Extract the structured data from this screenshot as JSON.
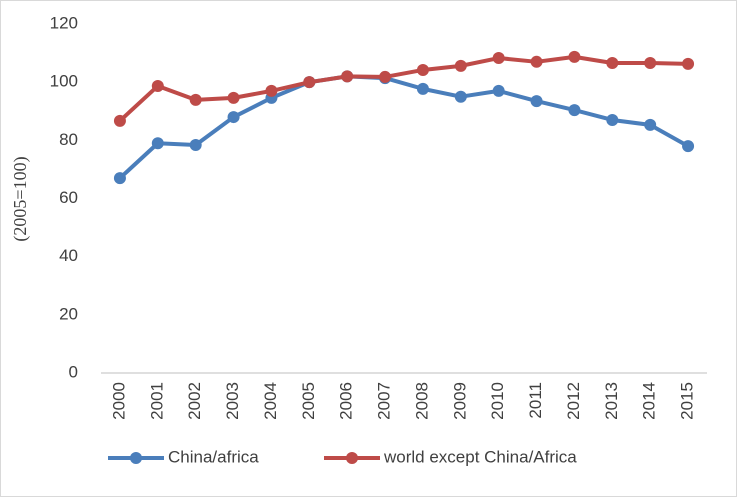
{
  "chart_data": {
    "type": "line",
    "y_label": "(2005=100)",
    "categories": [
      "2000",
      "2001",
      "2002",
      "2003",
      "2004",
      "2005",
      "2006",
      "2007",
      "2008",
      "2009",
      "2010",
      "2011",
      "2012",
      "2013",
      "2014",
      "2015"
    ],
    "series": [
      {
        "name": "China/africa",
        "color": "#4a7ebb",
        "values": [
          67,
          79,
          78.4,
          88,
          94.6,
          100,
          102,
          101.4,
          97.7,
          95,
          97,
          93.5,
          90.4,
          87,
          85.3,
          78
        ]
      },
      {
        "name": "world except China/Africa",
        "color": "#be4b48",
        "values": [
          86.7,
          98.7,
          93.9,
          94.6,
          97,
          100,
          102,
          101.8,
          104.2,
          105.6,
          108.3,
          107,
          108.7,
          106.6,
          106.6,
          106.3
        ]
      }
    ],
    "ylim": [
      0,
      120
    ],
    "yticks": [
      0,
      20,
      40,
      60,
      80,
      100,
      120
    ],
    "grid": false,
    "legend": "bottom"
  }
}
